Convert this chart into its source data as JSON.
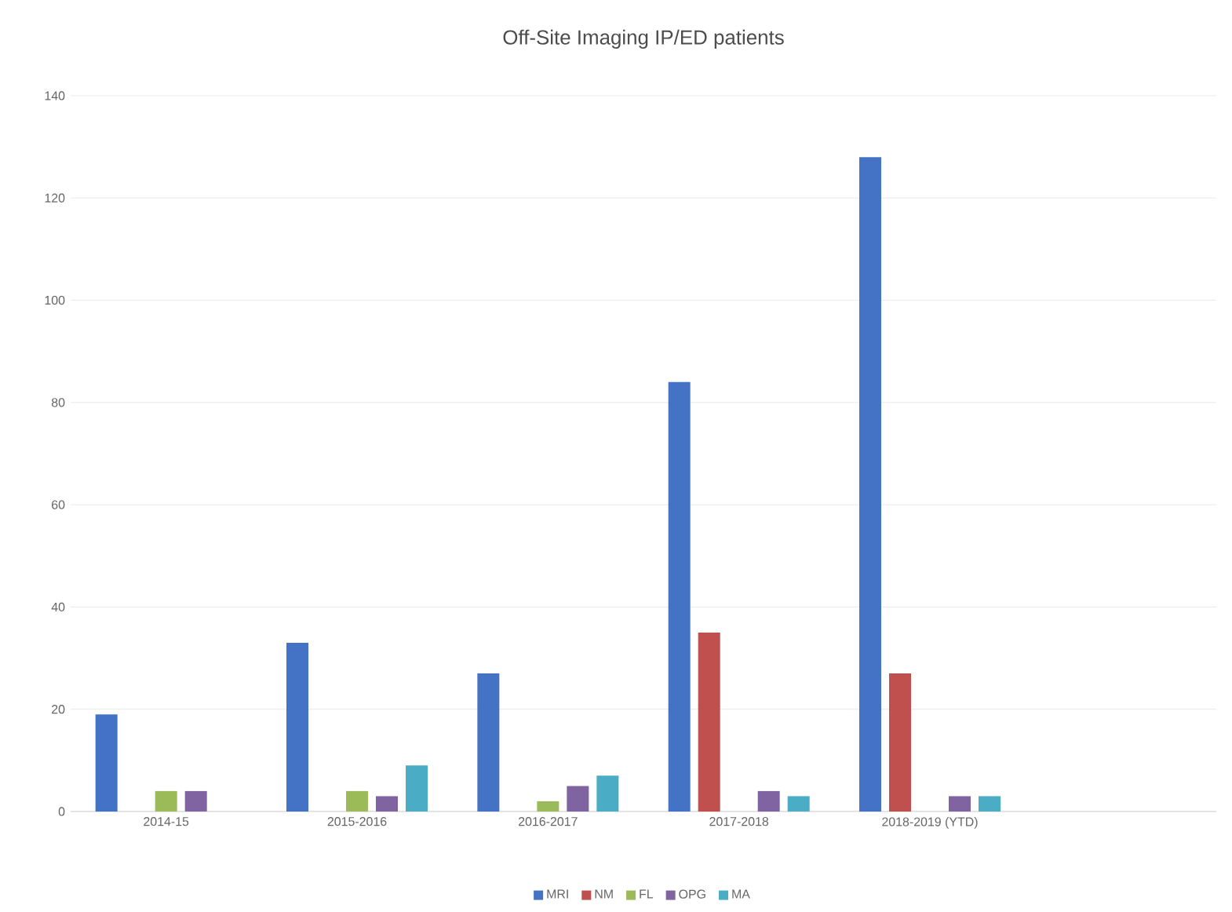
{
  "chart_data": {
    "type": "bar",
    "title": "Off-Site Imaging IP/ED patients",
    "categories": [
      "2014-15",
      "2015-2016",
      "2016-2017",
      "2017-2018",
      "2018-2019 (YTD)",
      null
    ],
    "series": [
      {
        "name": "MRI",
        "color": "#4472c4",
        "values": [
          19,
          33,
          27,
          84,
          128,
          null
        ]
      },
      {
        "name": "NM",
        "color": "#c0504d",
        "values": [
          null,
          null,
          null,
          35,
          27,
          null
        ]
      },
      {
        "name": "FL",
        "color": "#9bbb59",
        "values": [
          4,
          4,
          2,
          null,
          null,
          null
        ]
      },
      {
        "name": "OPG",
        "color": "#8064a2",
        "values": [
          4,
          3,
          5,
          4,
          3,
          null
        ]
      },
      {
        "name": "MA",
        "color": "#4bacc6",
        "values": [
          null,
          9,
          7,
          3,
          3,
          null
        ]
      }
    ],
    "ylim": [
      0,
      140
    ],
    "yticks": [
      0,
      20,
      40,
      60,
      80,
      100,
      120,
      140
    ],
    "grid": "y",
    "legend": "bottom"
  }
}
